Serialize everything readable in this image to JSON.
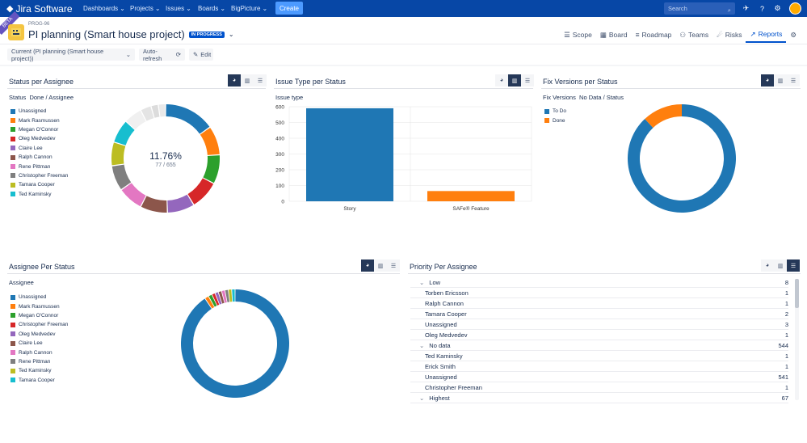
{
  "topnav": {
    "product": "Jira Software",
    "items": [
      {
        "label": "Dashboards",
        "name": "nav-dashboards"
      },
      {
        "label": "Projects",
        "name": "nav-projects"
      },
      {
        "label": "Issues",
        "name": "nav-issues"
      },
      {
        "label": "Boards",
        "name": "nav-boards"
      },
      {
        "label": "BigPicture",
        "name": "nav-bigpicture"
      }
    ],
    "create_label": "Create",
    "search_placeholder": "Search"
  },
  "project": {
    "badge": "BETA",
    "key": "PROG-96",
    "title": "PI planning (Smart house project)",
    "status": "IN PROGRESS"
  },
  "tabs": [
    {
      "label": "Scope",
      "icon": "list-icon"
    },
    {
      "label": "Board",
      "icon": "board-icon"
    },
    {
      "label": "Roadmap",
      "icon": "roadmap-icon"
    },
    {
      "label": "Teams",
      "icon": "teams-icon"
    },
    {
      "label": "Risks",
      "icon": "risk-icon"
    },
    {
      "label": "Reports",
      "icon": "reports-icon",
      "active": true
    }
  ],
  "toolbar": {
    "current": "Current (PI planning (Smart house project))",
    "autorefresh": "Auto-refresh",
    "edit": "Edit"
  },
  "panels": {
    "status_per_assignee": {
      "title": "Status per Assignee",
      "subtitle_a": "Status",
      "subtitle_b": "Done / Assignee",
      "center_pct": "11.76%",
      "center_ratio": "77 / 655"
    },
    "issue_type_per_status": {
      "title": "Issue Type per Status",
      "subtitle": "Issue type"
    },
    "fix_versions": {
      "title": "Fix Versions per Status",
      "subtitle_a": "Fix Versions",
      "subtitle_b": "No Data / Status"
    },
    "assignee_per_status": {
      "title": "Assignee Per Status",
      "subtitle": "Assignee"
    },
    "priority_per_assignee": {
      "title": "Priority Per Assignee"
    }
  },
  "colors": {
    "blue": "#1f77b4",
    "orange": "#ff7f0e",
    "green": "#2ca02c",
    "red": "#d62728",
    "purple": "#9467bd",
    "brown": "#8c564b",
    "pink": "#e377c2",
    "gray": "#7f7f7f",
    "olive": "#bcbd22",
    "cyan": "#17becf"
  },
  "chart_data": [
    {
      "type": "pie",
      "title": "Status per Assignee",
      "legend": [
        "Unassigned",
        "Mark Rasmussen",
        "Megan O'Connor",
        "Oleg Medvedev",
        "Claire Lee",
        "Ralph Cannon",
        "Rene Pittman",
        "Christopher Freeman",
        "Tamara Cooper",
        "Ted Kaminsky"
      ],
      "slices": [
        {
          "label": "Unassigned",
          "value": 14,
          "color": "#1f77b4"
        },
        {
          "label": "Mark Rasmussen",
          "value": 8,
          "color": "#ff7f0e"
        },
        {
          "label": "Megan O'Connor",
          "value": 8,
          "color": "#2ca02c"
        },
        {
          "label": "Oleg Medvedev",
          "value": 8,
          "color": "#d62728"
        },
        {
          "label": "Claire Lee",
          "value": 7.5,
          "color": "#9467bd"
        },
        {
          "label": "Ralph Cannon",
          "value": 7.5,
          "color": "#8c564b"
        },
        {
          "label": "Rene Pittman",
          "value": 7,
          "color": "#e377c2"
        },
        {
          "label": "Christopher Freeman",
          "value": 7,
          "color": "#7f7f7f"
        },
        {
          "label": "Tamara Cooper",
          "value": 6.5,
          "color": "#bcbd22"
        },
        {
          "label": "Ted Kaminsky",
          "value": 6.5,
          "color": "#17becf"
        },
        {
          "label": "",
          "value": 5,
          "color": "#f0f0f0"
        },
        {
          "label": "",
          "value": 3,
          "color": "#e4e4e4"
        },
        {
          "label": "",
          "value": 2,
          "color": "#dcdcdc"
        },
        {
          "label": "",
          "value": 2,
          "color": "#e9e9e9"
        }
      ]
    },
    {
      "type": "bar",
      "title": "Issue Type per Status",
      "categories": [
        "Story",
        "SAFe® Feature"
      ],
      "values": [
        590,
        65
      ],
      "colors": [
        "#1f77b4",
        "#ff7f0e"
      ],
      "ylim": [
        0,
        600
      ],
      "yticks": [
        0,
        100,
        200,
        300,
        400,
        500,
        600
      ]
    },
    {
      "type": "pie",
      "title": "Fix Versions per Status",
      "legend": [
        "To Do",
        "Done"
      ],
      "slices": [
        {
          "label": "To Do",
          "value": 88,
          "color": "#1f77b4"
        },
        {
          "label": "Done",
          "value": 12,
          "color": "#ff7f0e"
        }
      ]
    },
    {
      "type": "pie",
      "title": "Assignee Per Status",
      "legend": [
        "Unassigned",
        "Mark Rasmussen",
        "Megan O'Connor",
        "Christopher Freeman",
        "Oleg Medvedev",
        "Claire Lee",
        "Ralph Cannon",
        "Rene Pittman",
        "Ted Kaminsky",
        "Tamara Cooper"
      ],
      "slices": [
        {
          "label": "Unassigned",
          "value": 90,
          "color": "#1f77b4"
        },
        {
          "label": "Mark Rasmussen",
          "value": 1.2,
          "color": "#ff7f0e"
        },
        {
          "label": "Megan O'Connor",
          "value": 1.1,
          "color": "#2ca02c"
        },
        {
          "label": "Christopher Freeman",
          "value": 1.0,
          "color": "#d62728"
        },
        {
          "label": "Oleg Medvedev",
          "value": 1.0,
          "color": "#9467bd"
        },
        {
          "label": "Claire Lee",
          "value": 1.0,
          "color": "#8c564b"
        },
        {
          "label": "Ralph Cannon",
          "value": 1.0,
          "color": "#e377c2"
        },
        {
          "label": "Rene Pittman",
          "value": 1.0,
          "color": "#7f7f7f"
        },
        {
          "label": "Ted Kaminsky",
          "value": 1.0,
          "color": "#bcbd22"
        },
        {
          "label": "Tamara Cooper",
          "value": 1.0,
          "color": "#17becf"
        }
      ]
    },
    {
      "type": "table",
      "title": "Priority Per Assignee",
      "rows": [
        {
          "label": "Low",
          "value": "8",
          "group": true
        },
        {
          "label": "Torben Ericsson",
          "value": "1"
        },
        {
          "label": "Ralph Cannon",
          "value": "1"
        },
        {
          "label": "Tamara Cooper",
          "value": "2"
        },
        {
          "label": "Unassigned",
          "value": "3"
        },
        {
          "label": "Oleg Medvedev",
          "value": "1"
        },
        {
          "label": "No data",
          "value": "544",
          "group": true
        },
        {
          "label": "Ted Kaminsky",
          "value": "1"
        },
        {
          "label": "Erick Smith",
          "value": "1"
        },
        {
          "label": "Unassigned",
          "value": "541"
        },
        {
          "label": "Christopher Freeman",
          "value": "1"
        },
        {
          "label": "Highest",
          "value": "67",
          "group": true
        }
      ]
    }
  ]
}
